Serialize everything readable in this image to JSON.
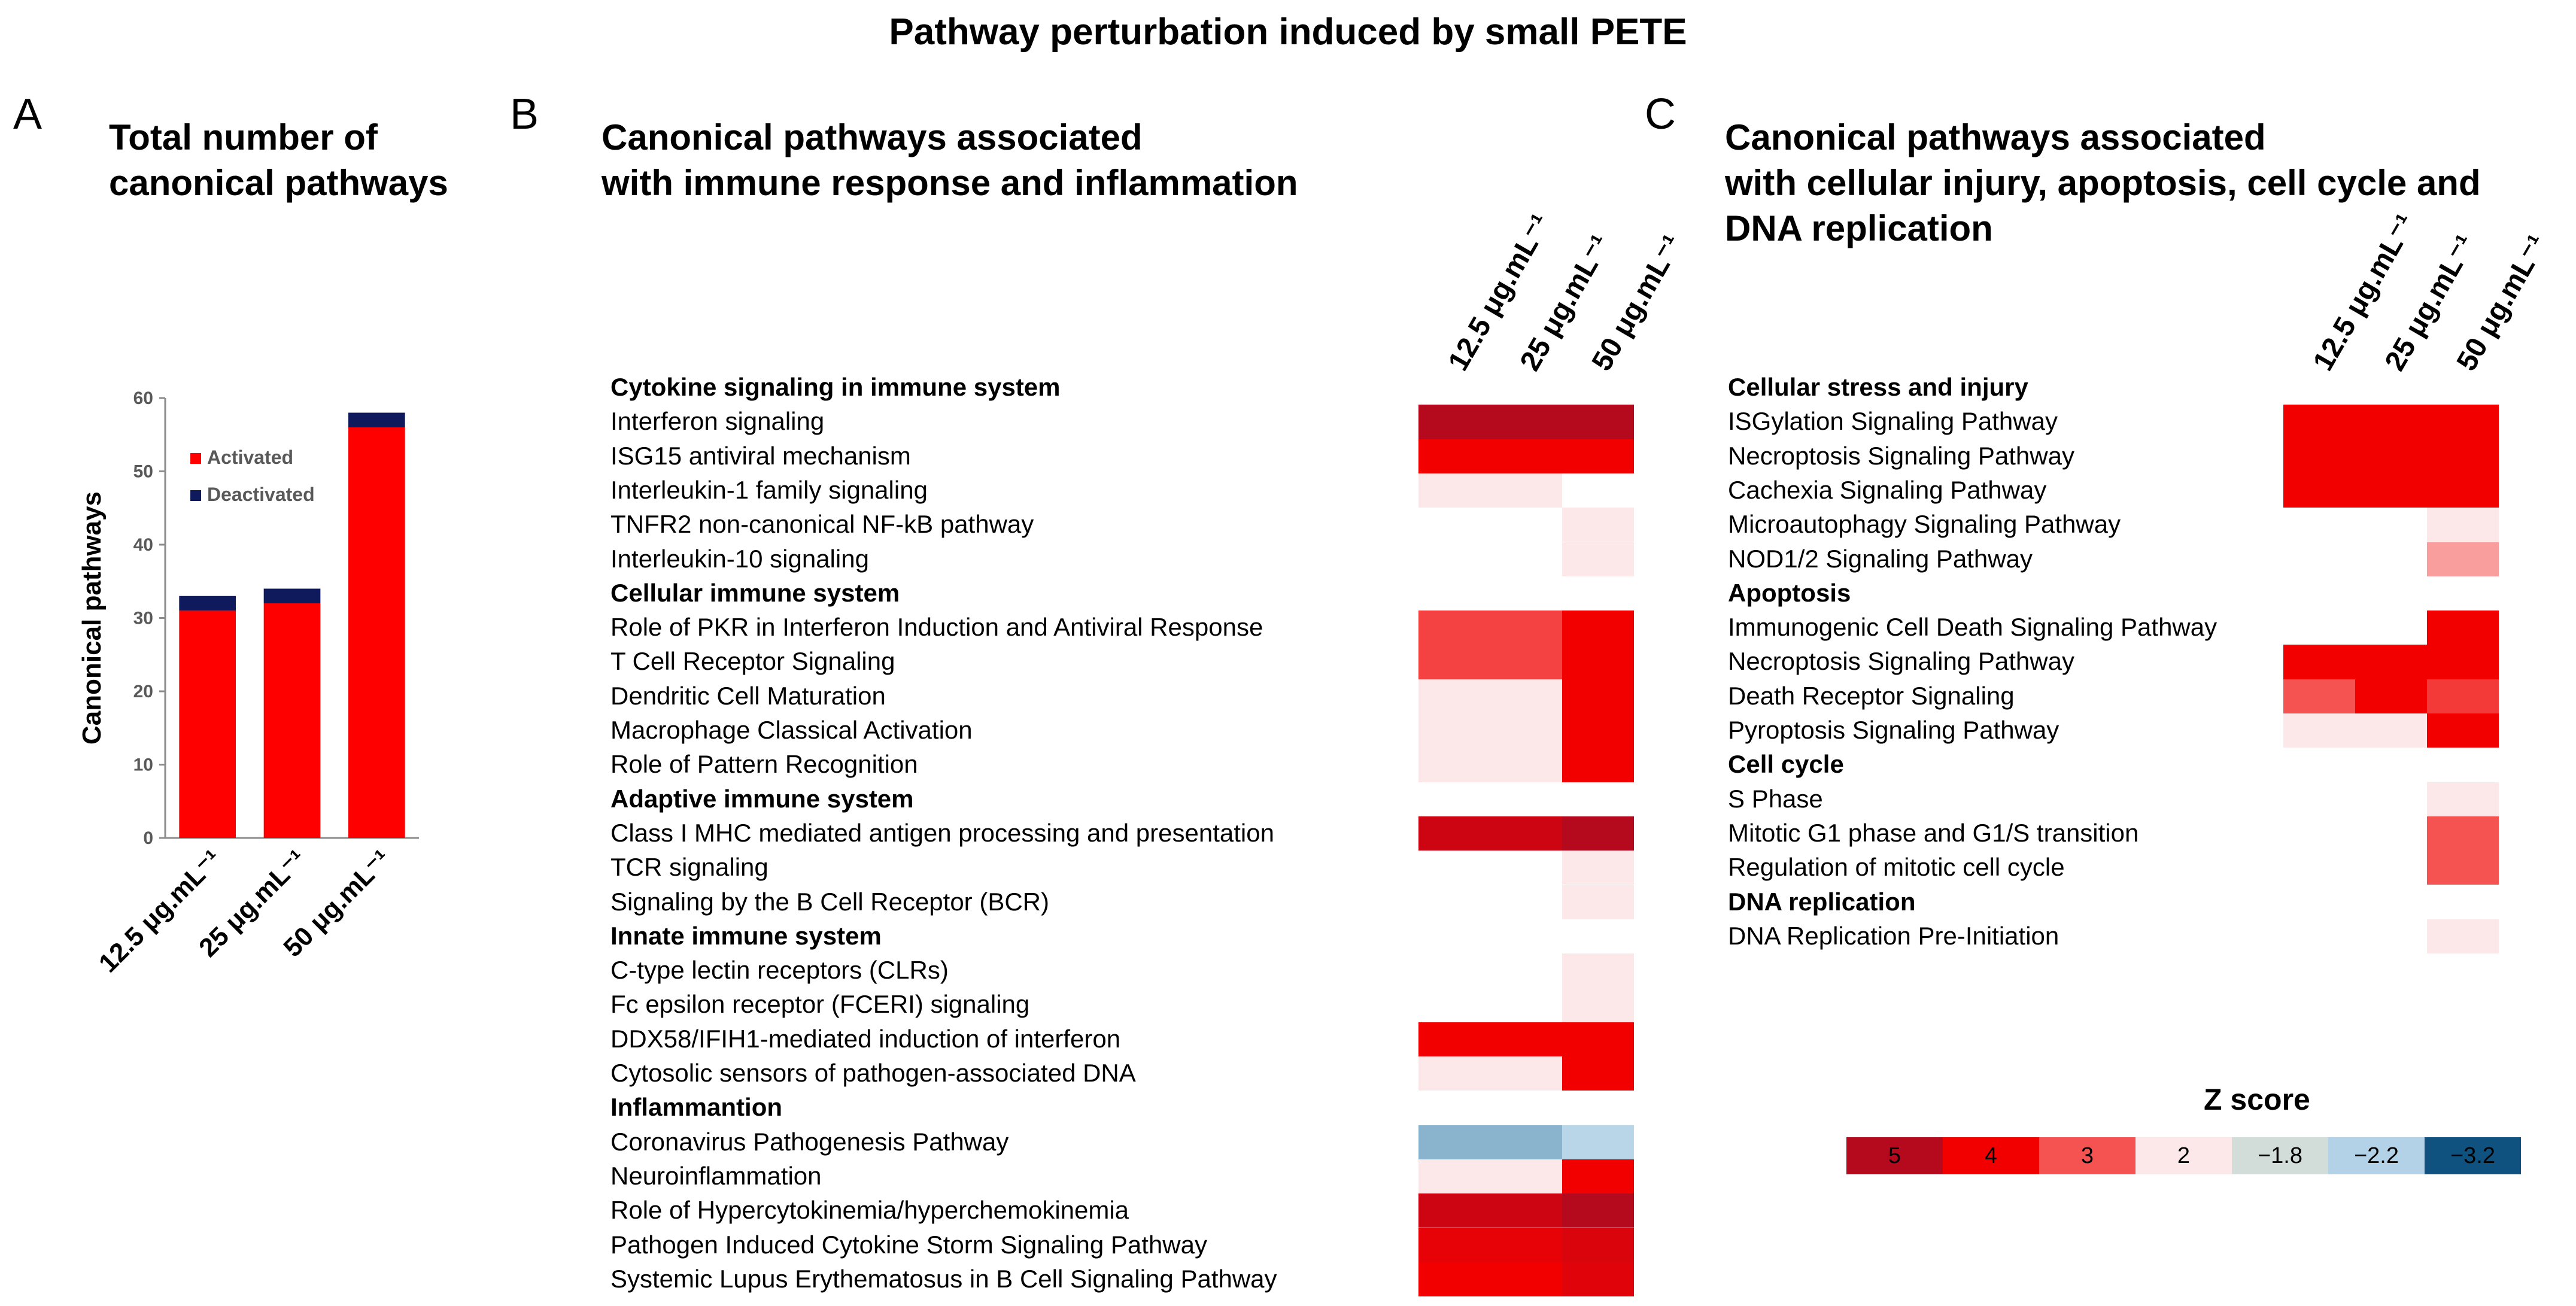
{
  "figure_title": "Pathway perturbation induced by small PETE",
  "panel_a": {
    "letter": "A",
    "title_line1": "Total number of",
    "title_line2": "canonical pathways"
  },
  "panel_b": {
    "letter": "B",
    "title_line1": "Canonical pathways associated",
    "title_line2": "with immune response and inflammation",
    "columns": [
      "12.5 μg.mL⁻¹",
      "25 μg.mL⁻¹",
      "50 μg.mL⁻¹"
    ],
    "rows": [
      {
        "label": "Cytokine signaling in immune system",
        "heading": true
      },
      {
        "label": "Interferon  signaling",
        "z": [
          5,
          5,
          5.3
        ]
      },
      {
        "label": "ISG15 antiviral mechanism",
        "z": [
          4,
          4,
          4
        ]
      },
      {
        "label": "Interleukin-1 family signaling",
        "z": [
          2,
          2,
          null
        ]
      },
      {
        "label": "TNFR2 non-canonical NF-kB pathway",
        "z": [
          null,
          null,
          2
        ]
      },
      {
        "label": "Interleukin-10 signaling",
        "z": [
          null,
          null,
          2
        ]
      },
      {
        "label": "Cellular immune system",
        "heading": true
      },
      {
        "label": "Role of PKR in Interferon Induction and Antiviral Response",
        "z": [
          3.2,
          3.2,
          4
        ]
      },
      {
        "label": "T Cell Receptor Signaling",
        "z": [
          3.2,
          3.2,
          4
        ]
      },
      {
        "label": "Dendritic Cell Maturation",
        "z": [
          2,
          2,
          4
        ]
      },
      {
        "label": "Macrophage Classical Activation",
        "z": [
          2,
          2,
          4
        ]
      },
      {
        "label": "Role of Pattern Recognition",
        "z": [
          2,
          2,
          4
        ]
      },
      {
        "label": "Adaptive  immune system",
        "heading": true
      },
      {
        "label": "Class I MHC mediated antigen processing and presentation",
        "z": [
          4.6,
          4.6,
          5
        ]
      },
      {
        "label": "TCR signaling",
        "z": [
          null,
          null,
          2
        ]
      },
      {
        "label": "Signaling by the B Cell Receptor (BCR)",
        "z": [
          null,
          null,
          2
        ]
      },
      {
        "label": "Innate  immune system",
        "heading": true
      },
      {
        "label": "C-type lectin receptors (CLRs)",
        "z": [
          null,
          null,
          2
        ]
      },
      {
        "label": "Fc epsilon receptor (FCERI) signaling",
        "z": [
          null,
          null,
          2
        ]
      },
      {
        "label": "DDX58/IFIH1-mediated induction of interferon",
        "z": [
          4,
          4,
          4
        ]
      },
      {
        "label": "Cytosolic sensors of pathogen-associated DNA",
        "z": [
          2,
          2,
          4
        ]
      },
      {
        "label": "Inflammantion",
        "heading": true
      },
      {
        "label": "Coronavirus Pathogenesis Pathway",
        "z": [
          -2.5,
          -2.5,
          -2.0
        ]
      },
      {
        "label": "Neuroinflammation",
        "z": [
          2,
          2,
          4
        ]
      },
      {
        "label": "Role of Hypercytokinemia/hyperchemokinemia",
        "z": [
          4.6,
          4.6,
          5
        ]
      },
      {
        "label": "Pathogen Induced Cytokine Storm Signaling Pathway",
        "z": [
          4.2,
          4.2,
          4.4
        ]
      },
      {
        "label": "Systemic Lupus Erythematosus in B Cell Signaling Pathway",
        "z": [
          4,
          4,
          4.3
        ]
      }
    ]
  },
  "panel_c": {
    "letter": "C",
    "title_line1": "Canonical pathways associated",
    "title_line2": "with cellular injury, apoptosis, cell cycle and",
    "title_line3": "DNA replication",
    "columns": [
      "12.5 μg.mL⁻¹",
      "25 μg.mL⁻¹",
      "50 μg.mL⁻¹"
    ],
    "rows": [
      {
        "label": "Cellular stress and injury",
        "heading": true
      },
      {
        "label": "ISGylation Signaling Pathway",
        "z": [
          4,
          4,
          4
        ]
      },
      {
        "label": "Necroptosis Signaling Pathway",
        "z": [
          4,
          4,
          4
        ]
      },
      {
        "label": "Cachexia Signaling Pathway",
        "z": [
          4,
          4,
          4
        ]
      },
      {
        "label": "Microautophagy Signaling Pathway",
        "z": [
          null,
          null,
          2
        ]
      },
      {
        "label": "NOD1/2 Signaling Pathway",
        "z": [
          null,
          null,
          2.5
        ]
      },
      {
        "label": "Apoptosis",
        "heading": true
      },
      {
        "label": "Immunogenic Cell Death Signaling Pathway",
        "z": [
          null,
          null,
          4
        ]
      },
      {
        "label": "Necroptosis Signaling Pathway",
        "z": [
          4,
          4,
          4
        ]
      },
      {
        "label": "Death Receptor Signaling",
        "z": [
          3,
          4,
          3.3
        ]
      },
      {
        "label": "Pyroptosis Signaling Pathway",
        "z": [
          2,
          2,
          4
        ]
      },
      {
        "label": "Cell cycle",
        "heading": true
      },
      {
        "label": "S Phase",
        "z": [
          null,
          null,
          2
        ]
      },
      {
        "label": "Mitotic G1 phase and G1/S transition",
        "z": [
          null,
          null,
          3
        ]
      },
      {
        "label": "Regulation of mitotic cell cycle",
        "z": [
          null,
          null,
          3
        ]
      },
      {
        "label": "DNA replication",
        "heading": true
      },
      {
        "label": "DNA Replication Pre-Initiation",
        "z": [
          null,
          null,
          2
        ]
      }
    ]
  },
  "legend": {
    "title": "Z score",
    "items": [
      {
        "label": "5",
        "color": "#B5091E"
      },
      {
        "label": "4",
        "color": "#F20000"
      },
      {
        "label": "3",
        "color": "#F55252"
      },
      {
        "label": "2",
        "color": "#FCE8E8"
      },
      {
        "label": "−1.8",
        "color": "#D2DDDA"
      },
      {
        "label": "−2.2",
        "color": "#B3D2E8"
      },
      {
        "label": "−3.2",
        "color": "#0F5280"
      }
    ]
  },
  "chart_data": [
    {
      "type": "bar",
      "stacked": true,
      "title": "Total number of canonical pathways",
      "xlabel": "",
      "ylabel": "Canonical pathways",
      "categories": [
        "12.5 μg.mL⁻¹",
        "25 μg.mL⁻¹",
        "50 μg.mL⁻¹"
      ],
      "series": [
        {
          "name": "Activated",
          "values": [
            31,
            32,
            56
          ],
          "color": "#FF0000"
        },
        {
          "name": "Deactivated",
          "values": [
            2,
            2,
            2
          ],
          "color": "#0E1A5C"
        }
      ],
      "ylim": [
        0,
        60
      ],
      "yticks": [
        0,
        10,
        20,
        30,
        40,
        50,
        60
      ],
      "legend": "top-left"
    },
    {
      "type": "heatmap",
      "title": "Canonical pathways associated with immune response and inflammation",
      "source": "panel_b"
    },
    {
      "type": "heatmap",
      "title": "Canonical pathways associated with cellular injury, apoptosis, cell cycle and DNA replication",
      "source": "panel_c"
    }
  ]
}
